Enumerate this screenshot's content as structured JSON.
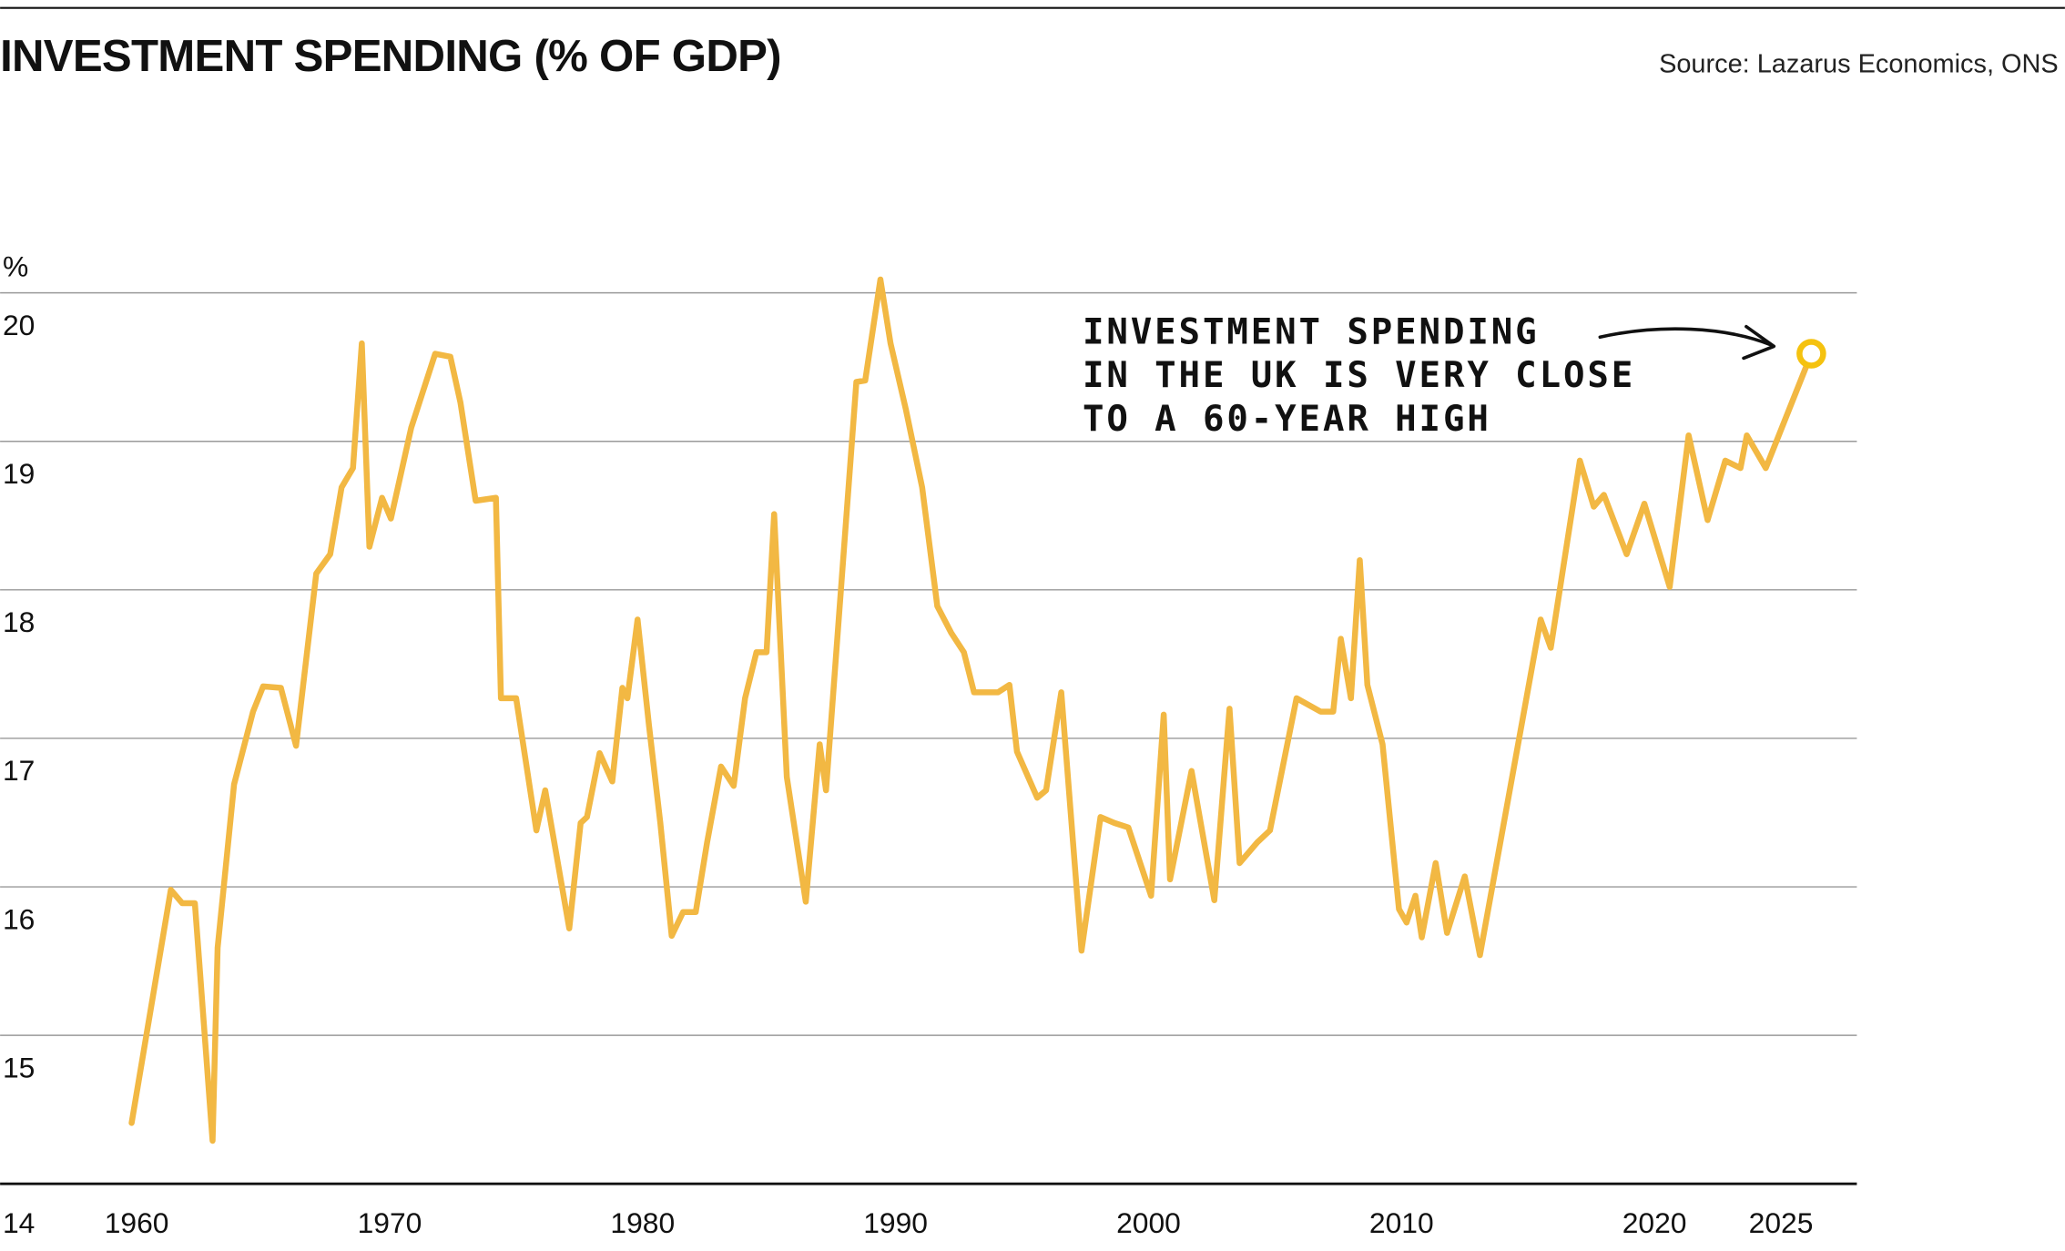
{
  "chart_data": {
    "type": "line",
    "title": "INVESTMENT SPENDING (% OF GDP)",
    "source": "Source: Lazarus Economics, ONS",
    "y_label": "%",
    "annotation": [
      "INVESTMENT SPENDING",
      "IN THE UK IS VERY CLOSE",
      "TO A 60-YEAR HIGH"
    ],
    "xlim": [
      1954.6,
      2028
    ],
    "xticks": [
      1960,
      1970,
      1980,
      1990,
      2000,
      2010,
      2020,
      2025
    ],
    "ylim": [
      14,
      20.5
    ],
    "yticks": [
      14,
      15,
      16,
      17,
      18,
      19,
      20
    ],
    "grid": true,
    "series": [
      {
        "name": "Investment spending",
        "color": "#f2b843",
        "x": [
          1959.8,
          1961.35,
          1961.8,
          1962.3,
          1963.0,
          1963.2,
          1963.85,
          1964.6,
          1965.0,
          1965.7,
          1966.3,
          1967.1,
          1967.65,
          1968.1,
          1968.55,
          1968.9,
          1969.2,
          1969.7,
          1970.05,
          1970.85,
          1971.8,
          1972.4,
          1972.8,
          1973.4,
          1974.2,
          1974.4,
          1975.0,
          1975.8,
          1976.15,
          1977.1,
          1977.55,
          1977.8,
          1978.3,
          1978.8,
          1979.2,
          1979.4,
          1979.8,
          1980.25,
          1980.7,
          1981.15,
          1981.6,
          1982.1,
          1982.55,
          1983.1,
          1983.6,
          1984.05,
          1984.5,
          1984.9,
          1985.2,
          1985.4,
          1985.7,
          1986.45,
          1987.0,
          1987.25,
          1988.45,
          1988.8,
          1989.4,
          1989.8,
          1990.4,
          1991.05,
          1991.65,
          1992.2,
          1992.7,
          1993.1,
          1993.55,
          1994.05,
          1994.5,
          1994.8,
          1995.6,
          1995.95,
          1996.55,
          1997.35,
          1998.1,
          1998.65,
          1999.2,
          2000.1,
          2000.6,
          2000.85,
          2001.7,
          2002.6,
          2003.2,
          2003.6,
          2004.3,
          2004.8,
          2005.85,
          2006.8,
          2007.3,
          2007.6,
          2008.0,
          2008.35,
          2008.65,
          2009.25,
          2009.9,
          2010.2,
          2010.55,
          2010.8,
          2011.35,
          2011.8,
          2012.5,
          2013.1,
          2015.5,
          2015.9,
          2017.05,
          2017.6,
          2018.0,
          2018.9,
          2019.6,
          2020.6,
          2021.35,
          2022.1,
          2022.8,
          2023.4,
          2023.65,
          2024.4,
          2026.2
        ],
        "values": [
          14.41,
          15.98,
          15.89,
          15.89,
          14.29,
          15.59,
          16.69,
          17.18,
          17.35,
          17.34,
          16.95,
          18.11,
          18.24,
          18.69,
          18.82,
          19.66,
          18.29,
          18.62,
          18.48,
          19.09,
          19.59,
          19.57,
          19.26,
          18.6,
          18.62,
          17.27,
          17.27,
          16.38,
          16.65,
          15.72,
          16.43,
          16.47,
          16.9,
          16.71,
          17.34,
          17.27,
          17.8,
          17.09,
          16.43,
          15.67,
          15.83,
          15.83,
          16.3,
          16.81,
          16.68,
          17.27,
          17.58,
          17.58,
          18.51,
          17.8,
          16.74,
          15.9,
          16.96,
          16.65,
          19.4,
          19.41,
          20.09,
          19.66,
          19.22,
          18.69,
          17.89,
          17.71,
          17.58,
          17.31,
          17.31,
          17.31,
          17.36,
          16.91,
          16.6,
          16.65,
          17.31,
          15.57,
          16.47,
          16.43,
          16.4,
          15.94,
          17.16,
          16.05,
          16.78,
          15.91,
          17.2,
          16.16,
          16.3,
          16.38,
          17.27,
          17.18,
          17.18,
          17.67,
          17.27,
          18.2,
          17.36,
          16.96,
          15.85,
          15.76,
          15.94,
          15.66,
          16.16,
          15.69,
          16.07,
          15.54,
          17.8,
          17.61,
          18.87,
          18.56,
          18.64,
          18.24,
          18.58,
          18.02,
          19.04,
          18.47,
          18.87,
          18.82,
          19.04,
          18.82,
          19.59
        ]
      }
    ]
  }
}
